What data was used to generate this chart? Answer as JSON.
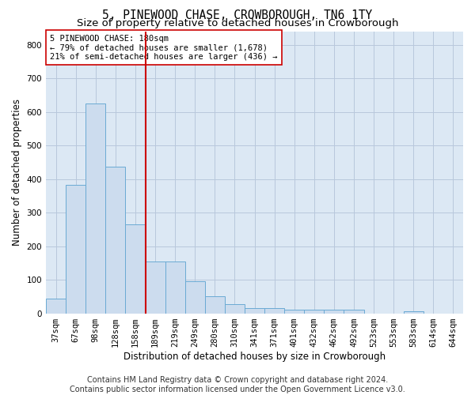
{
  "title": "5, PINEWOOD CHASE, CROWBOROUGH, TN6 1TY",
  "subtitle": "Size of property relative to detached houses in Crowborough",
  "xlabel": "Distribution of detached houses by size in Crowborough",
  "ylabel": "Number of detached properties",
  "categories": [
    "37sqm",
    "67sqm",
    "98sqm",
    "128sqm",
    "158sqm",
    "189sqm",
    "219sqm",
    "249sqm",
    "280sqm",
    "310sqm",
    "341sqm",
    "371sqm",
    "401sqm",
    "432sqm",
    "462sqm",
    "492sqm",
    "523sqm",
    "553sqm",
    "583sqm",
    "614sqm",
    "644sqm"
  ],
  "values": [
    44,
    383,
    625,
    437,
    265,
    154,
    155,
    95,
    52,
    28,
    15,
    15,
    10,
    10,
    10,
    10,
    0,
    0,
    7,
    0,
    0
  ],
  "bar_color": "#ccdcee",
  "bar_edge_color": "#6aaad4",
  "grid_color": "#b8c8dc",
  "background_color": "#dce8f4",
  "property_line_color": "#cc0000",
  "annotation_text": "5 PINEWOOD CHASE: 180sqm\n← 79% of detached houses are smaller (1,678)\n21% of semi-detached houses are larger (436) →",
  "annotation_box_color": "#ffffff",
  "annotation_box_edge_color": "#cc0000",
  "footnote": "Contains HM Land Registry data © Crown copyright and database right 2024.\nContains public sector information licensed under the Open Government Licence v3.0.",
  "ylim": [
    0,
    840
  ],
  "yticks": [
    0,
    100,
    200,
    300,
    400,
    500,
    600,
    700,
    800
  ],
  "title_fontsize": 10.5,
  "subtitle_fontsize": 9.5,
  "label_fontsize": 8.5,
  "tick_fontsize": 7.5,
  "footnote_fontsize": 7.0,
  "annotation_fontsize": 7.5
}
